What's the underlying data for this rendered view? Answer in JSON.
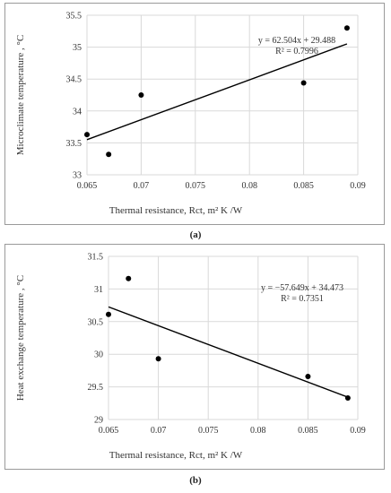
{
  "chart_data": [
    {
      "type": "scatter",
      "label": "(a)",
      "title": "",
      "xlabel": "Thermal resistance, Rct, m² K /W",
      "ylabel": "Microclimate temperature , °C",
      "xlim": [
        0.065,
        0.09
      ],
      "ylim": [
        33,
        35.5
      ],
      "xticks": [
        "0.065",
        "0.07",
        "0.075",
        "0.08",
        "0.085",
        "0.09"
      ],
      "yticks": [
        "33",
        "33.5",
        "34",
        "34.5",
        "35",
        "35.5"
      ],
      "grid": true,
      "points": [
        {
          "x": 0.065,
          "y": 33.63
        },
        {
          "x": 0.067,
          "y": 33.32
        },
        {
          "x": 0.07,
          "y": 34.25
        },
        {
          "x": 0.085,
          "y": 34.44
        },
        {
          "x": 0.089,
          "y": 35.3
        }
      ],
      "trendline": {
        "slope": 62.504,
        "intercept": 29.488
      },
      "equation": "y = 62.504x + 29.488",
      "r2": "R² = 0.7996"
    },
    {
      "type": "scatter",
      "label": "(b)",
      "title": "",
      "xlabel": "Thermal resistance, Rct, m² K /W",
      "ylabel": "Heat exchange temperature , °C",
      "xlim": [
        0.065,
        0.09
      ],
      "ylim": [
        29,
        31.5
      ],
      "xticks": [
        "0.065",
        "0.07",
        "0.075",
        "0.08",
        "0.085",
        "0.09"
      ],
      "yticks": [
        "29",
        "29.5",
        "30",
        "30.5",
        "31",
        "31.5"
      ],
      "grid": true,
      "points": [
        {
          "x": 0.065,
          "y": 30.61
        },
        {
          "x": 0.067,
          "y": 31.16
        },
        {
          "x": 0.07,
          "y": 29.93
        },
        {
          "x": 0.085,
          "y": 29.66
        },
        {
          "x": 0.089,
          "y": 29.33
        }
      ],
      "trendline": {
        "slope": -57.649,
        "intercept": 34.473
      },
      "equation": "y = −57.649x + 34.473",
      "r2": "R² = 0.7351"
    }
  ],
  "colors": {
    "grid": "#d9d9d9",
    "marker": "#000000",
    "line": "#000000"
  }
}
